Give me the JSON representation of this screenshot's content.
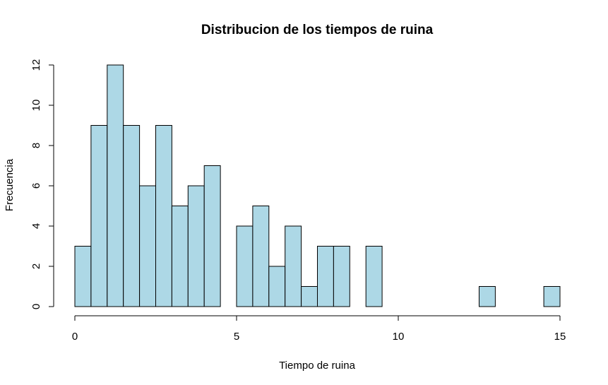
{
  "chart_data": {
    "type": "bar",
    "title": "Distribucion de los tiempos de ruina",
    "xlabel": "Tiempo de ruina",
    "ylabel": "Frecuencia",
    "bin_width": 0.5,
    "bins": [
      {
        "x0": 0.0,
        "x1": 0.5,
        "count": 3
      },
      {
        "x0": 0.5,
        "x1": 1.0,
        "count": 9
      },
      {
        "x0": 1.0,
        "x1": 1.5,
        "count": 12
      },
      {
        "x0": 1.5,
        "x1": 2.0,
        "count": 9
      },
      {
        "x0": 2.0,
        "x1": 2.5,
        "count": 6
      },
      {
        "x0": 2.5,
        "x1": 3.0,
        "count": 9
      },
      {
        "x0": 3.0,
        "x1": 3.5,
        "count": 5
      },
      {
        "x0": 3.5,
        "x1": 4.0,
        "count": 6
      },
      {
        "x0": 4.0,
        "x1": 4.5,
        "count": 7
      },
      {
        "x0": 4.5,
        "x1": 5.0,
        "count": 0
      },
      {
        "x0": 5.0,
        "x1": 5.5,
        "count": 4
      },
      {
        "x0": 5.5,
        "x1": 6.0,
        "count": 5
      },
      {
        "x0": 6.0,
        "x1": 6.5,
        "count": 2
      },
      {
        "x0": 6.5,
        "x1": 7.0,
        "count": 4
      },
      {
        "x0": 7.0,
        "x1": 7.5,
        "count": 1
      },
      {
        "x0": 7.5,
        "x1": 8.0,
        "count": 3
      },
      {
        "x0": 8.0,
        "x1": 8.5,
        "count": 3
      },
      {
        "x0": 8.5,
        "x1": 9.0,
        "count": 0
      },
      {
        "x0": 9.0,
        "x1": 9.5,
        "count": 3
      },
      {
        "x0": 9.5,
        "x1": 10.0,
        "count": 0
      },
      {
        "x0": 10.0,
        "x1": 10.5,
        "count": 0
      },
      {
        "x0": 10.5,
        "x1": 11.0,
        "count": 0
      },
      {
        "x0": 11.0,
        "x1": 11.5,
        "count": 0
      },
      {
        "x0": 11.5,
        "x1": 12.0,
        "count": 0
      },
      {
        "x0": 12.0,
        "x1": 12.5,
        "count": 0
      },
      {
        "x0": 12.5,
        "x1": 13.0,
        "count": 1
      },
      {
        "x0": 13.0,
        "x1": 13.5,
        "count": 0
      },
      {
        "x0": 13.5,
        "x1": 14.0,
        "count": 0
      },
      {
        "x0": 14.0,
        "x1": 14.5,
        "count": 0
      },
      {
        "x0": 14.5,
        "x1": 15.0,
        "count": 1
      }
    ],
    "xlim": [
      0,
      15
    ],
    "ylim": [
      0,
      12
    ],
    "x_ticks": [
      0,
      5,
      10,
      15
    ],
    "y_ticks": [
      0,
      2,
      4,
      6,
      8,
      10,
      12
    ],
    "grid": false,
    "bar_color": "#add8e6",
    "edge_color": "#000000"
  }
}
